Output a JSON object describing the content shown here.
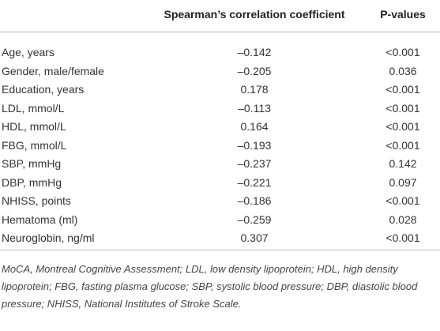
{
  "table": {
    "columns": [
      "Spearman’s correlation coefficient",
      "P-values"
    ],
    "rows": [
      [
        "Age, years",
        "–0.142",
        "<0.001"
      ],
      [
        "Gender, male/female",
        "–0.205",
        "0.036"
      ],
      [
        "Education, years",
        "0.178",
        "<0.001"
      ],
      [
        "LDL, mmol/L",
        "–0.113",
        "<0.001"
      ],
      [
        "HDL, mmol/L",
        "0.164",
        "<0.001"
      ],
      [
        "FBG, mmol/L",
        "–0.193",
        "<0.001"
      ],
      [
        "SBP, mmHg",
        "–0.237",
        "0.142"
      ],
      [
        "DBP, mmHg",
        "–0.221",
        "0.097"
      ],
      [
        "NHISS, points",
        "–0.186",
        "<0.001"
      ],
      [
        "Hematoma (ml)",
        "–0.259",
        "0.028"
      ],
      [
        "Neuroglobin, ng/ml",
        "0.307",
        "<0.001"
      ]
    ]
  },
  "footnote": "MoCA, Montreal Cognitive Assessment; LDL, low density lipoprotein; HDL, high density lipoprotein; FBG, fasting plasma glucose; SBP, systolic blood pressure; DBP, diastolic blood pressure; NHISS, National Institutes of Stroke Scale."
}
